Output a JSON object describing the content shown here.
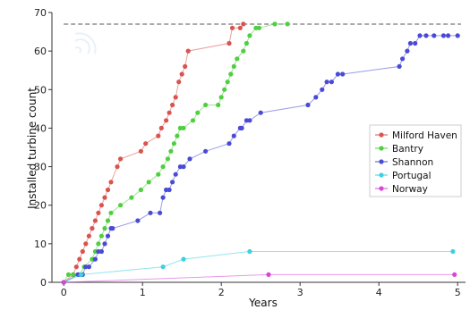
{
  "chart_data": {
    "type": "line",
    "xlabel": "Years",
    "ylabel": "Installed turbine count",
    "xlim": [
      -0.15,
      5.1
    ],
    "ylim": [
      0,
      70
    ],
    "xticks": [
      "0",
      "1",
      "2",
      "3",
      "4",
      "5"
    ],
    "yticks": [
      "0",
      "10",
      "20",
      "30",
      "40",
      "50",
      "60",
      "70"
    ],
    "grid": false,
    "legend_position": "right",
    "reference_line": {
      "y": 67,
      "style": "dashed",
      "color": "#555555"
    },
    "series": [
      {
        "name": "Milford Haven",
        "color": "#d9534f",
        "x": [
          0.0,
          0.12,
          0.16,
          0.2,
          0.24,
          0.28,
          0.32,
          0.36,
          0.4,
          0.44,
          0.48,
          0.52,
          0.56,
          0.6,
          0.68,
          0.72,
          0.98,
          1.04,
          1.2,
          1.24,
          1.3,
          1.34,
          1.38,
          1.42,
          1.46,
          1.5,
          1.54,
          1.58,
          2.1,
          2.14,
          2.24,
          2.28
        ],
        "y": [
          0,
          2,
          4,
          6,
          8,
          10,
          12,
          14,
          16,
          18,
          20,
          22,
          24,
          26,
          30,
          32,
          34,
          36,
          38,
          40,
          42,
          44,
          46,
          48,
          52,
          54,
          56,
          60,
          62,
          66,
          66,
          67
        ]
      },
      {
        "name": "Bantry",
        "color": "#4fcf3f",
        "x": [
          0.0,
          0.06,
          0.12,
          0.2,
          0.26,
          0.36,
          0.4,
          0.44,
          0.48,
          0.52,
          0.56,
          0.6,
          0.72,
          0.86,
          0.98,
          1.08,
          1.2,
          1.26,
          1.32,
          1.36,
          1.4,
          1.44,
          1.48,
          1.52,
          1.64,
          1.7,
          1.8,
          1.96,
          2.0,
          2.04,
          2.08,
          2.12,
          2.16,
          2.2,
          2.28,
          2.32,
          2.36,
          2.44,
          2.48,
          2.68,
          2.84
        ],
        "y": [
          0,
          2,
          2,
          2,
          4,
          6,
          8,
          10,
          12,
          14,
          16,
          18,
          20,
          22,
          24,
          26,
          28,
          30,
          32,
          34,
          36,
          38,
          40,
          40,
          42,
          44,
          46,
          46,
          48,
          50,
          52,
          54,
          56,
          58,
          60,
          62,
          64,
          66,
          66,
          67,
          67
        ]
      },
      {
        "name": "Shannon",
        "color": "#4a4ad6",
        "x": [
          0.0,
          0.18,
          0.24,
          0.28,
          0.32,
          0.4,
          0.44,
          0.48,
          0.52,
          0.56,
          0.6,
          0.62,
          0.94,
          1.1,
          1.22,
          1.26,
          1.3,
          1.34,
          1.38,
          1.42,
          1.48,
          1.52,
          1.6,
          1.8,
          2.1,
          2.16,
          2.24,
          2.26,
          2.32,
          2.36,
          2.5,
          3.1,
          3.2,
          3.28,
          3.34,
          3.4,
          3.48,
          3.54,
          4.26,
          4.3,
          4.36,
          4.4,
          4.46,
          4.52,
          4.6,
          4.7,
          4.82,
          4.88,
          5.0
        ],
        "y": [
          0,
          2,
          2,
          4,
          4,
          6,
          8,
          8,
          10,
          12,
          14,
          14,
          16,
          18,
          18,
          22,
          24,
          24,
          26,
          28,
          30,
          30,
          32,
          34,
          36,
          38,
          40,
          40,
          42,
          42,
          44,
          46,
          48,
          50,
          52,
          52,
          54,
          54,
          56,
          58,
          60,
          62,
          62,
          64,
          64,
          64,
          64,
          64,
          64
        ]
      },
      {
        "name": "Portugal",
        "color": "#3ecfe0",
        "x": [
          0.0,
          0.22,
          1.26,
          1.52,
          2.36,
          4.94
        ],
        "y": [
          0,
          2,
          4,
          6,
          8,
          8
        ]
      },
      {
        "name": "Norway",
        "color": "#d846d8",
        "x": [
          0.0,
          2.6,
          4.96
        ],
        "y": [
          0,
          2,
          2
        ]
      }
    ]
  }
}
